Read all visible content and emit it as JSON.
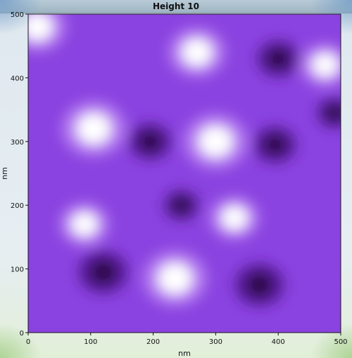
{
  "window": {
    "title": "Height 10"
  },
  "chart_data": {
    "type": "heatmap",
    "title": "Height 10",
    "xlabel": "nm",
    "ylabel": "nm",
    "xlim": [
      0,
      500
    ],
    "ylim": [
      0,
      500
    ],
    "x_ticks": [
      "0",
      "100",
      "200",
      "300",
      "400",
      "500"
    ],
    "y_ticks": [
      "0",
      "100",
      "200",
      "300",
      "400",
      "500"
    ],
    "grid": false,
    "colormap": [
      "#2a0a45",
      "#5a1f9a",
      "#8a43e0",
      "#b47af0",
      "#ffffff"
    ],
    "features": [
      {
        "kind": "bright",
        "x": 105,
        "y": 320,
        "r": 45
      },
      {
        "kind": "bright",
        "x": 300,
        "y": 300,
        "r": 45
      },
      {
        "kind": "bright",
        "x": 270,
        "y": 440,
        "r": 40
      },
      {
        "kind": "bright",
        "x": 475,
        "y": 420,
        "r": 35
      },
      {
        "kind": "bright",
        "x": 235,
        "y": 85,
        "r": 45
      },
      {
        "kind": "bright",
        "x": 90,
        "y": 170,
        "r": 35
      },
      {
        "kind": "bright",
        "x": 330,
        "y": 180,
        "r": 35
      },
      {
        "kind": "bright",
        "x": 15,
        "y": 480,
        "r": 40
      },
      {
        "kind": "dark",
        "x": 195,
        "y": 300,
        "r": 30
      },
      {
        "kind": "dark",
        "x": 395,
        "y": 295,
        "r": 30
      },
      {
        "kind": "dark",
        "x": 120,
        "y": 95,
        "r": 35
      },
      {
        "kind": "dark",
        "x": 370,
        "y": 75,
        "r": 35
      },
      {
        "kind": "dark",
        "x": 490,
        "y": 345,
        "r": 25
      },
      {
        "kind": "dark",
        "x": 245,
        "y": 200,
        "r": 25
      },
      {
        "kind": "dark",
        "x": 400,
        "y": 430,
        "r": 30
      }
    ]
  }
}
